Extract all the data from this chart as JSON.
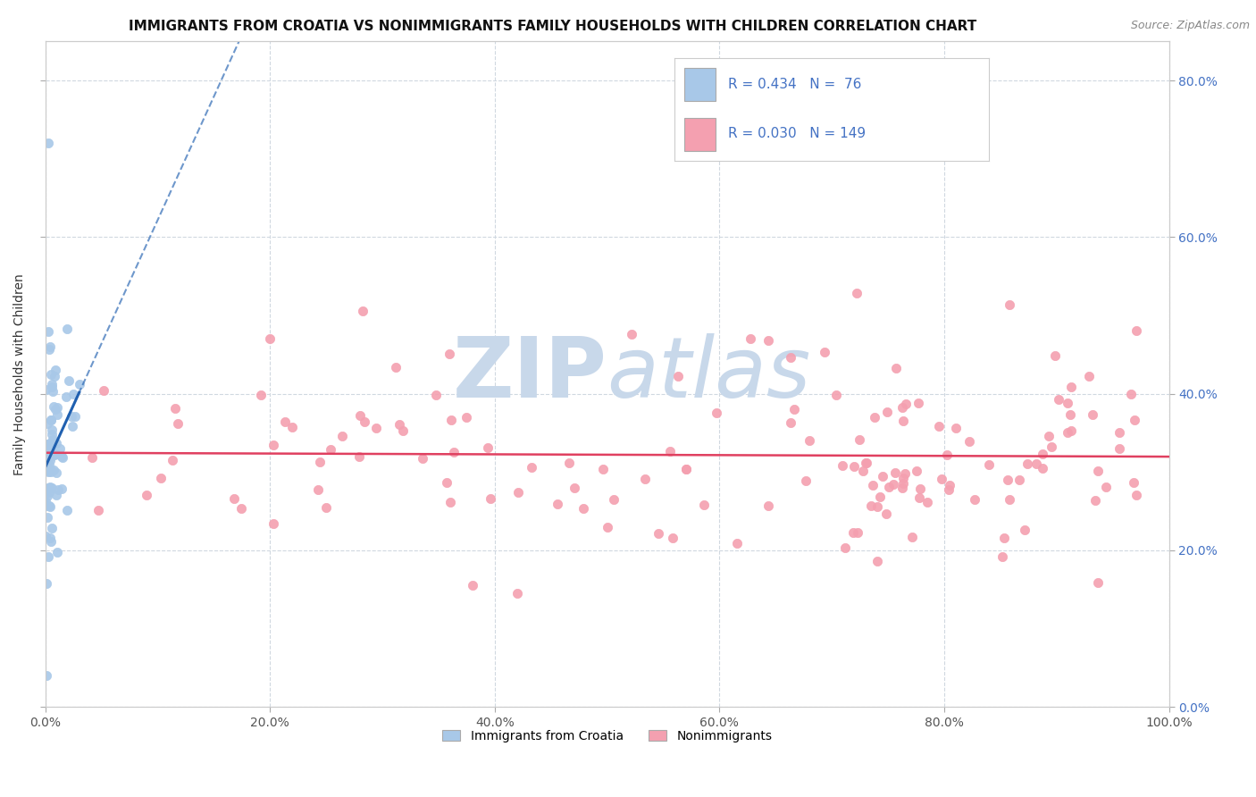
{
  "title": "IMMIGRANTS FROM CROATIA VS NONIMMIGRANTS FAMILY HOUSEHOLDS WITH CHILDREN CORRELATION CHART",
  "source": "Source: ZipAtlas.com",
  "ylabel": "Family Households with Children",
  "xlim": [
    0.0,
    1.0
  ],
  "ylim": [
    0.0,
    0.85
  ],
  "yticks": [
    0.0,
    0.2,
    0.4,
    0.6,
    0.8
  ],
  "ytick_labels": [
    "0.0%",
    "20.0%",
    "40.0%",
    "60.0%",
    "80.0%"
  ],
  "xticks": [
    0.0,
    0.2,
    0.4,
    0.6,
    0.8,
    1.0
  ],
  "xtick_labels": [
    "0.0%",
    "20.0%",
    "40.0%",
    "60.0%",
    "80.0%",
    "100.0%"
  ],
  "blue_color": "#a8c8e8",
  "pink_color": "#f4a0b0",
  "blue_line_color": "#2060b0",
  "pink_line_color": "#e04060",
  "R_blue": 0.434,
  "N_blue": 76,
  "R_pink": 0.03,
  "N_pink": 149,
  "watermark_zip": "ZIP",
  "watermark_atlas": "atlas",
  "watermark_color": "#c8d8ea",
  "grid_color": "#d0d8e0",
  "background_color": "#ffffff",
  "title_fontsize": 11,
  "axis_label_fontsize": 10,
  "tick_fontsize": 10,
  "tick_color": "#4472c4",
  "legend_text_color": "#4472c4"
}
